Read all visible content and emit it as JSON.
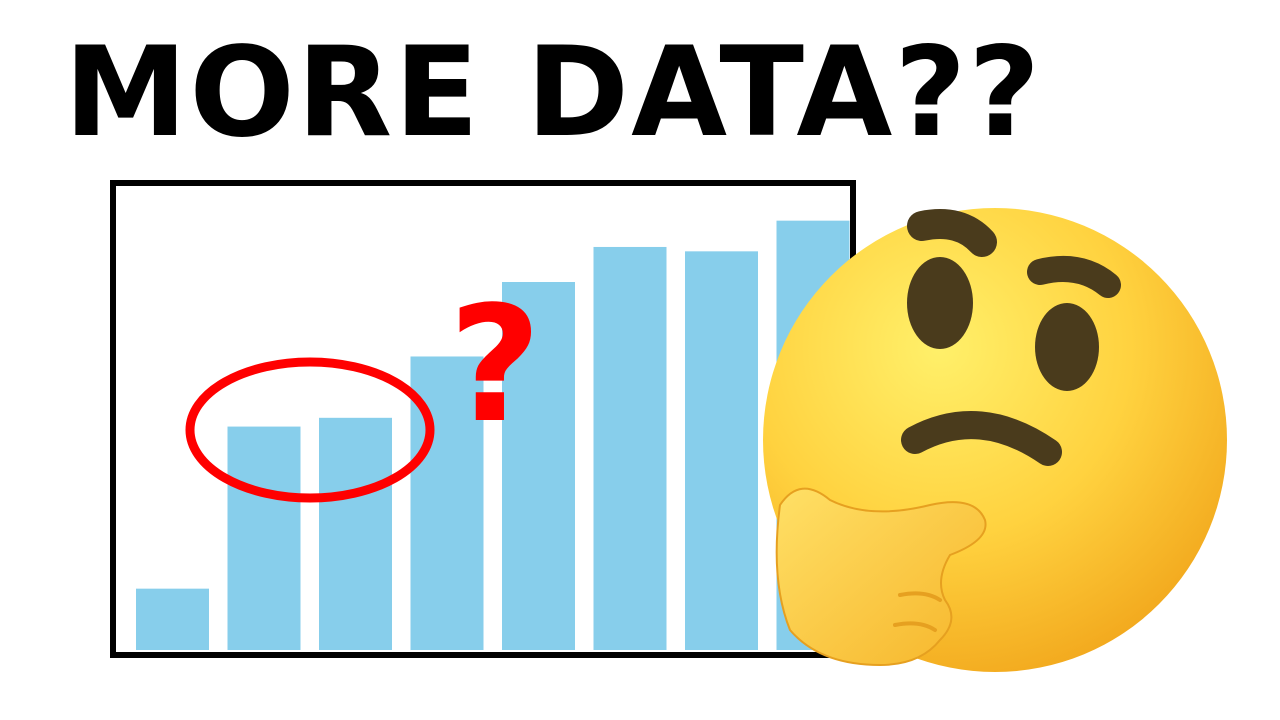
{
  "headline": "MORE DATA??",
  "annotation": {
    "mark": "?",
    "circled_bars": [
      1,
      2
    ]
  },
  "emoji": {
    "name": "thinking-face-icon"
  },
  "colors": {
    "bar": "#87ceeb",
    "frame": "#000000",
    "highlight": "#ff0000",
    "emoji_face": "#ffd23f",
    "emoji_features": "#4a3b1c"
  },
  "chart_data": {
    "type": "bar",
    "categories": [
      "",
      "",
      "",
      "",
      "",
      "",
      "",
      ""
    ],
    "values": [
      14,
      51,
      53,
      67,
      84,
      92,
      91,
      98
    ],
    "title": "",
    "xlabel": "",
    "ylabel": "",
    "ylim": [
      0,
      105
    ],
    "grid": false,
    "axis_ticks": false
  }
}
